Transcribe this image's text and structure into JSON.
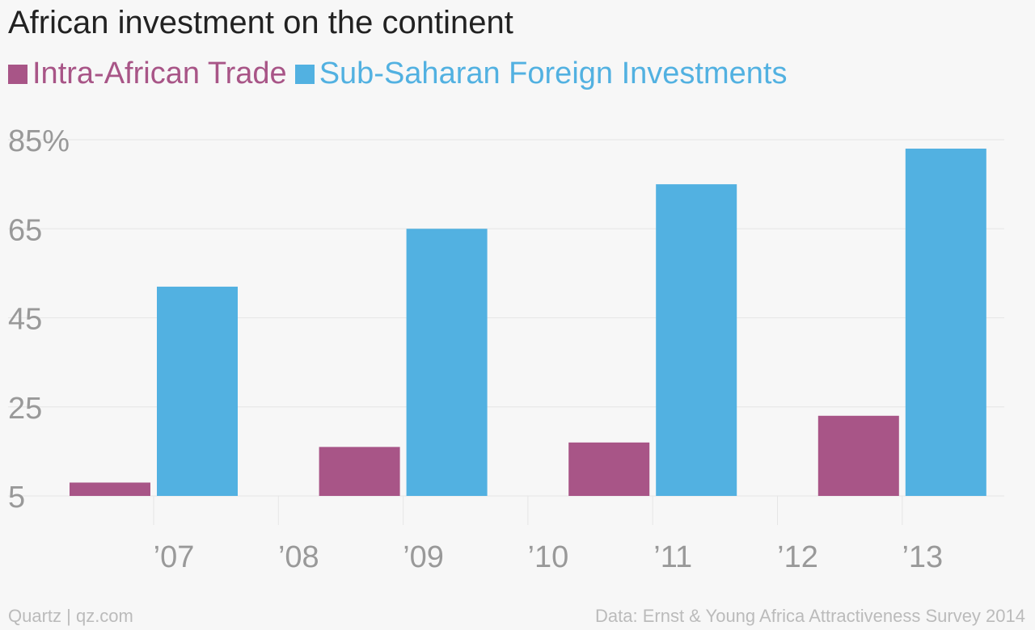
{
  "chart_data": {
    "type": "bar",
    "title": "African investment on the continent",
    "x": [
      "’07",
      "’08",
      "’09",
      "’10",
      "’11",
      "’12",
      "’13"
    ],
    "series": [
      {
        "name": "Intra-African Trade",
        "color": "#a85587",
        "x": [
          "’07",
          "’09",
          "’11",
          "’13"
        ],
        "values": [
          8,
          16,
          17,
          23
        ]
      },
      {
        "name": "Sub-Saharan Foreign Investments",
        "color": "#52b1e1",
        "x": [
          "’07",
          "’09",
          "’11",
          "’13"
        ],
        "values": [
          52,
          65,
          75,
          83
        ]
      }
    ],
    "yticks": [
      "85%",
      "65",
      "45",
      "25",
      "5"
    ],
    "ytick_values": [
      85,
      65,
      45,
      25,
      5
    ],
    "ylim": [
      5,
      85
    ],
    "grid": true,
    "legend_position": "top-left"
  },
  "footer": {
    "source_left": "Quartz | qz.com",
    "source_right": "Data: Ernst & Young Africa Attractiveness Survey 2014"
  },
  "colors": {
    "background": "#f7f7f7",
    "gridline": "#e6e6e6",
    "tick_text": "#999999"
  }
}
